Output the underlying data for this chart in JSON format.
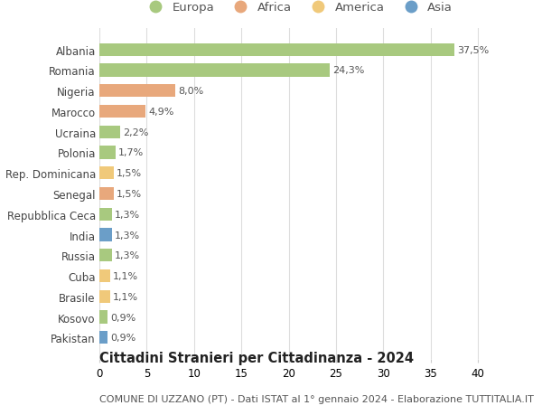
{
  "countries": [
    "Albania",
    "Romania",
    "Nigeria",
    "Marocco",
    "Ucraina",
    "Polonia",
    "Rep. Dominicana",
    "Senegal",
    "Repubblica Ceca",
    "India",
    "Russia",
    "Cuba",
    "Brasile",
    "Kosovo",
    "Pakistan"
  ],
  "values": [
    37.5,
    24.3,
    8.0,
    4.9,
    2.2,
    1.7,
    1.5,
    1.5,
    1.3,
    1.3,
    1.3,
    1.1,
    1.1,
    0.9,
    0.9
  ],
  "labels": [
    "37,5%",
    "24,3%",
    "8,0%",
    "4,9%",
    "2,2%",
    "1,7%",
    "1,5%",
    "1,5%",
    "1,3%",
    "1,3%",
    "1,3%",
    "1,1%",
    "1,1%",
    "0,9%",
    "0,9%"
  ],
  "continents": [
    "Europa",
    "Europa",
    "Africa",
    "Africa",
    "Europa",
    "Europa",
    "America",
    "Africa",
    "Europa",
    "Asia",
    "Europa",
    "America",
    "America",
    "Europa",
    "Asia"
  ],
  "continent_colors": {
    "Europa": "#a8c97f",
    "Africa": "#e8a87c",
    "America": "#f0c97a",
    "Asia": "#6b9ec8"
  },
  "legend_order": [
    "Europa",
    "Africa",
    "America",
    "Asia"
  ],
  "title": "Cittadini Stranieri per Cittadinanza - 2024",
  "subtitle": "COMUNE DI UZZANO (PT) - Dati ISTAT al 1° gennaio 2024 - Elaborazione TUTTITALIA.IT",
  "xlim": [
    0,
    42
  ],
  "xticks": [
    0,
    5,
    10,
    15,
    20,
    25,
    30,
    35,
    40
  ],
  "background_color": "#ffffff",
  "grid_color": "#dddddd",
  "bar_height": 0.62,
  "label_fontsize": 8.0,
  "title_fontsize": 10.5,
  "subtitle_fontsize": 8.0,
  "ytick_fontsize": 8.5,
  "xtick_fontsize": 8.5,
  "legend_fontsize": 9.5
}
